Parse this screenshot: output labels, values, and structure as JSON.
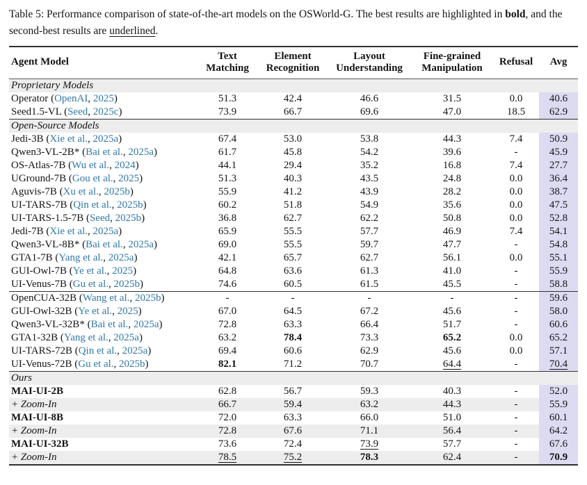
{
  "caption": {
    "label": "Table 5:",
    "body_1": " Performance comparison of state-of-the-art models on the OSWorld-G. The best results are highlighted in ",
    "bold_text": "bold",
    "body_2": ", and the second-best results are ",
    "underlined_text": "underlined",
    "body_3": "."
  },
  "colors": {
    "citation_blue": "#3178a9",
    "avg_highlight": "#dcdbf2",
    "section_band": "#ededed",
    "rule_dark": "#2e2e2e"
  },
  "table": {
    "columns": [
      {
        "key": "model",
        "label": "Agent Model"
      },
      {
        "key": "text_matching",
        "label": "Text\nMatching"
      },
      {
        "key": "element_recognition",
        "label": "Element\nRecognition"
      },
      {
        "key": "layout_understanding",
        "label": "Layout\nUnderstanding"
      },
      {
        "key": "fine_grained_manipulation",
        "label": "Fine-grained\nManipulation"
      },
      {
        "key": "refusal",
        "label": "Refusal"
      },
      {
        "key": "avg",
        "label": "Avg"
      }
    ],
    "sections": [
      {
        "label": "Proprietary Models",
        "rows": [
          {
            "model": "Operator",
            "citation": "OpenAI, 2025",
            "values": [
              "51.3",
              "42.4",
              "46.6",
              "31.5",
              "0.0",
              "40.6"
            ]
          },
          {
            "model": "Seed1.5-VL",
            "citation": "Seed, 2025c",
            "values": [
              "73.9",
              "66.7",
              "69.6",
              "47.0",
              "18.5",
              "62.9"
            ]
          }
        ]
      },
      {
        "label": "Open-Source Models",
        "rows": [
          {
            "model": "Jedi-3B",
            "citation": "Xie et al., 2025a",
            "values": [
              "67.4",
              "53.0",
              "53.8",
              "44.3",
              "7.4",
              "50.9"
            ]
          },
          {
            "model": "Qwen3-VL-2B*",
            "citation": "Bai et al., 2025a",
            "values": [
              "61.7",
              "45.8",
              "54.2",
              "39.6",
              "-",
              "45.9"
            ]
          },
          {
            "model": "OS-Atlas-7B",
            "citation": "Wu et al., 2024",
            "values": [
              "44.1",
              "29.4",
              "35.2",
              "16.8",
              "7.4",
              "27.7"
            ]
          },
          {
            "model": "UGround-7B",
            "citation": "Gou et al., 2025",
            "values": [
              "51.3",
              "40.3",
              "43.5",
              "24.8",
              "0.0",
              "36.4"
            ]
          },
          {
            "model": "Aguvis-7B",
            "citation": "Xu et al., 2025b",
            "values": [
              "55.9",
              "41.2",
              "43.9",
              "28.2",
              "0.0",
              "38.7"
            ]
          },
          {
            "model": "UI-TARS-7B",
            "citation": "Qin et al., 2025b",
            "values": [
              "60.2",
              "51.8",
              "54.9",
              "35.6",
              "0.0",
              "47.5"
            ]
          },
          {
            "model": "UI-TARS-1.5-7B",
            "citation": "Seed, 2025b",
            "values": [
              "36.8",
              "62.7",
              "62.2",
              "50.8",
              "0.0",
              "52.8"
            ]
          },
          {
            "model": "Jedi-7B",
            "citation": "Xie et al., 2025a",
            "values": [
              "65.9",
              "55.5",
              "57.7",
              "46.9",
              "7.4",
              "54.1"
            ]
          },
          {
            "model": "Qwen3-VL-8B*",
            "citation": "Bai et al., 2025a",
            "values": [
              "69.0",
              "55.5",
              "59.7",
              "47.7",
              "-",
              "54.8"
            ]
          },
          {
            "model": "GTA1-7B",
            "citation": "Yang et al., 2025a",
            "values": [
              "42.1",
              "65.7",
              "62.7",
              "56.1",
              "0.0",
              "55.1"
            ]
          },
          {
            "model": "GUI-Owl-7B",
            "citation": "Ye et al., 2025",
            "values": [
              "64.8",
              "63.6",
              "61.3",
              "41.0",
              "-",
              "55.9"
            ]
          },
          {
            "model": "UI-Venus-7B",
            "citation": "Gu et al., 2025b",
            "values": [
              "74.6",
              "60.5",
              "61.5",
              "45.5",
              "-",
              "58.8"
            ]
          }
        ]
      },
      {
        "label": null,
        "rows": [
          {
            "model": "OpenCUA-32B",
            "citation": "Wang et al., 2025b",
            "values": [
              "-",
              "-",
              "-",
              "-",
              "-",
              "59.6"
            ]
          },
          {
            "model": "GUI-Owl-32B",
            "citation": "Ye et al., 2025",
            "values": [
              "67.0",
              "64.5",
              "67.2",
              "45.6",
              "-",
              "58.0"
            ]
          },
          {
            "model": "Qwen3-VL-32B*",
            "citation": "Bai et al., 2025a",
            "values": [
              "72.8",
              "63.3",
              "66.4",
              "51.7",
              "-",
              "60.6"
            ]
          },
          {
            "model": "GTA1-32B",
            "citation": "Yang et al., 2025a",
            "values": [
              "63.2",
              "78.4",
              "73.3",
              "65.2",
              "0.0",
              "65.2"
            ],
            "bold": [
              1,
              3
            ]
          },
          {
            "model": "UI-TARS-72B",
            "citation": "Qin et al., 2025a",
            "values": [
              "69.4",
              "60.6",
              "62.9",
              "45.6",
              "0.0",
              "57.1"
            ]
          },
          {
            "model": "UI-Venus-72B",
            "citation": "Gu et al., 2025b",
            "values": [
              "82.1",
              "71.2",
              "70.7",
              "64.4",
              "-",
              "70.4"
            ],
            "bold": [
              0
            ],
            "underline": [
              3,
              5
            ]
          }
        ]
      },
      {
        "label": "Ours",
        "rows": [
          {
            "model": "MAI-UI-2B",
            "citation": null,
            "model_bold": true,
            "values": [
              "62.8",
              "56.7",
              "59.3",
              "40.3",
              "-",
              "52.0"
            ]
          },
          {
            "model": "+ Zoom-In",
            "citation": null,
            "model_italic": true,
            "shaded": true,
            "values": [
              "66.7",
              "59.4",
              "63.2",
              "44.3",
              "-",
              "55.9"
            ]
          },
          {
            "model": "MAI-UI-8B",
            "citation": null,
            "model_bold": true,
            "values": [
              "72.0",
              "63.3",
              "66.0",
              "51.0",
              "-",
              "60.1"
            ]
          },
          {
            "model": "+ Zoom-In",
            "citation": null,
            "model_italic": true,
            "shaded": true,
            "values": [
              "72.8",
              "67.6",
              "71.1",
              "56.4",
              "-",
              "64.2"
            ]
          },
          {
            "model": "MAI-UI-32B",
            "citation": null,
            "model_bold": true,
            "values": [
              "73.6",
              "72.4",
              "73.9",
              "57.7",
              "-",
              "67.6"
            ],
            "underline": [
              2
            ]
          },
          {
            "model": "+ Zoom-In",
            "citation": null,
            "model_italic": true,
            "shaded": true,
            "values": [
              "78.5",
              "75.2",
              "78.3",
              "62.4",
              "-",
              "70.9"
            ],
            "bold": [
              2,
              5
            ],
            "underline": [
              0,
              1
            ]
          }
        ]
      }
    ]
  }
}
